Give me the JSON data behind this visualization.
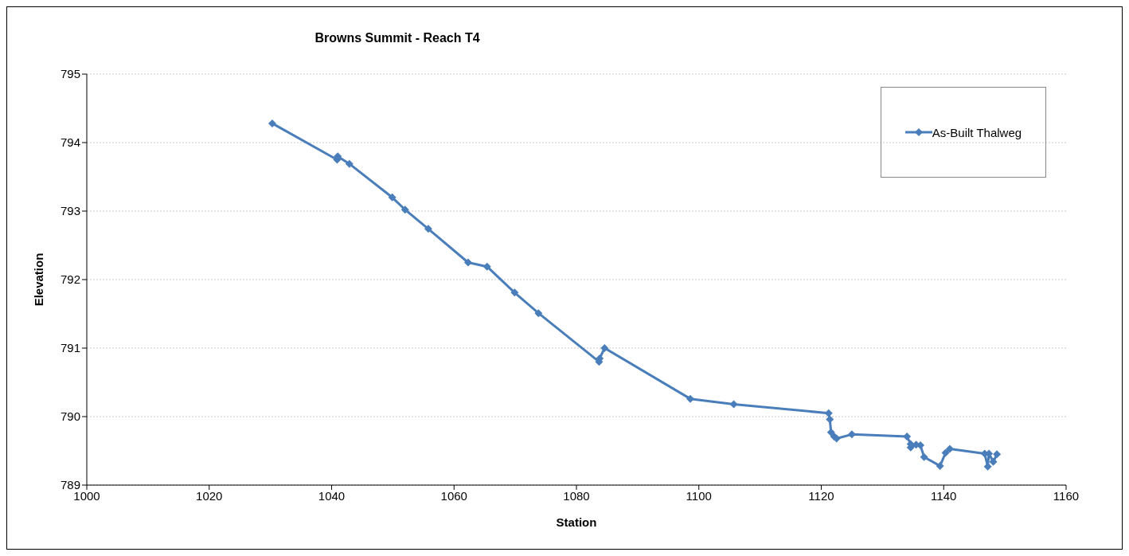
{
  "chart_data": {
    "type": "line",
    "title": "Browns Summit - Reach T4",
    "xlabel": "Station",
    "ylabel": "Elevation",
    "xlim": [
      1000,
      1160
    ],
    "xticks": [
      1000,
      1020,
      1040,
      1060,
      1080,
      1100,
      1120,
      1140,
      1160
    ],
    "ylim": [
      789,
      795
    ],
    "yticks": [
      789,
      790,
      791,
      792,
      793,
      794,
      795
    ],
    "grid": "y",
    "legend": "top right",
    "marker": "diamond",
    "line_style": "solid",
    "series": [
      {
        "name": "As-Built Thalweg",
        "color": "#4a7ebb",
        "x": [
          1030.3,
          1040.9,
          1041.0,
          1042.9,
          1049.9,
          1052.0,
          1055.8,
          1062.3,
          1065.4,
          1069.9,
          1073.8,
          1083.7,
          1083.8,
          1084.6,
          1098.6,
          1105.7,
          1121.2,
          1121.4,
          1121.6,
          1122.1,
          1122.5,
          1125.0,
          1134.0,
          1134.6,
          1134.6,
          1135.5,
          1136.2,
          1136.8,
          1139.4,
          1140.3,
          1141.0,
          1146.7,
          1147.2,
          1147.4,
          1148.1,
          1148.7
        ],
        "values": [
          794.28,
          793.75,
          793.8,
          793.69,
          793.2,
          793.02,
          792.74,
          792.25,
          792.19,
          791.81,
          791.51,
          790.8,
          790.85,
          791.0,
          790.26,
          790.18,
          790.05,
          789.96,
          789.77,
          789.71,
          789.68,
          789.74,
          789.71,
          789.6,
          789.55,
          789.59,
          789.58,
          789.41,
          789.28,
          789.47,
          789.53,
          789.46,
          789.27,
          789.46,
          789.34,
          789.45
        ]
      }
    ]
  }
}
